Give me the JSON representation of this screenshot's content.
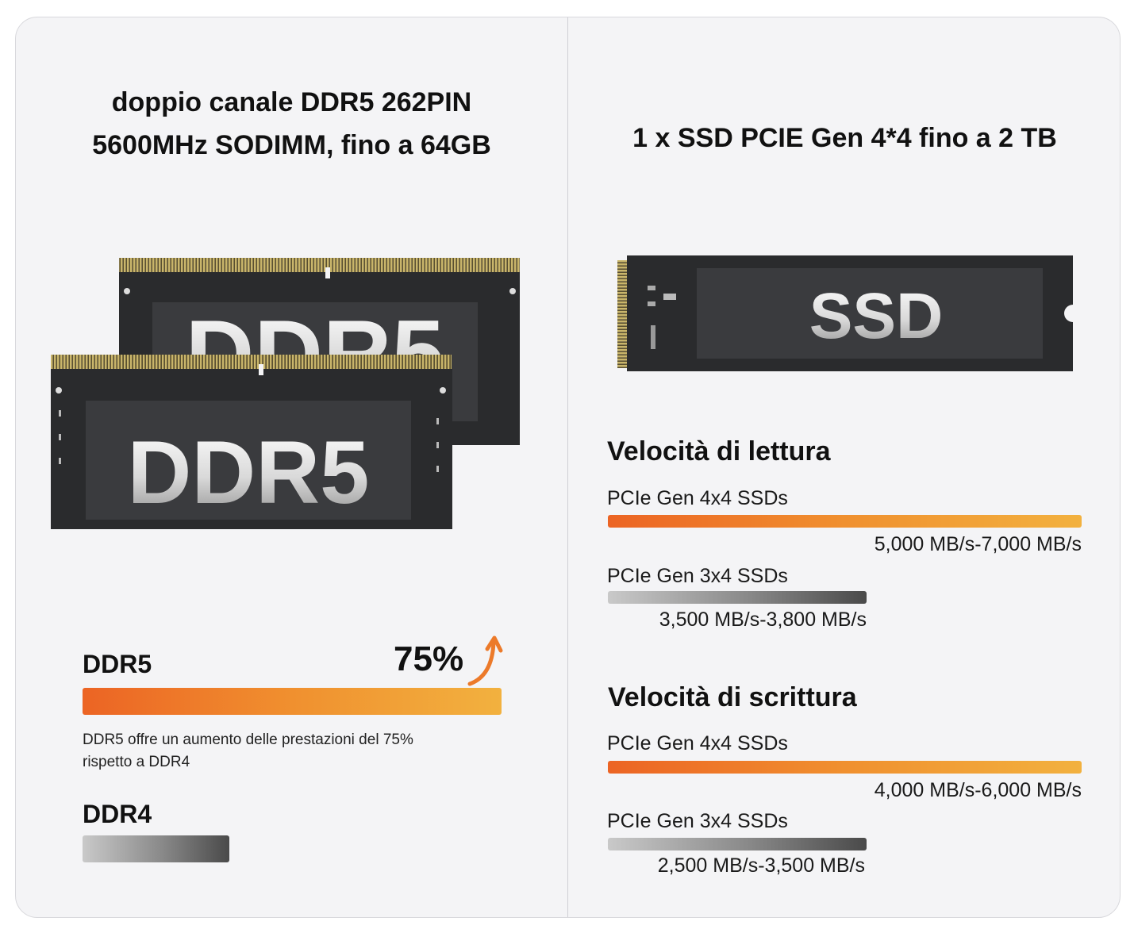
{
  "left": {
    "title_line1": "doppio canale DDR5 262PIN",
    "title_line2": "5600MHz SODIMM, fino a 64GB",
    "module_label_back": "DDR5",
    "module_label_front": "DDR5",
    "ddr5_label": "DDR5",
    "ddr5_percent": "75%",
    "ddr5_bar_fraction": 1.0,
    "desc_line1": "DDR5 offre un aumento delle prestazioni del 75%",
    "desc_line2": "rispetto a DDR4",
    "ddr4_label": "DDR4",
    "ddr4_bar_fraction": 0.35
  },
  "right": {
    "title": "1 x SSD PCIE Gen 4*4 fino a 2 TB",
    "ssd_label": "SSD",
    "read": {
      "heading": "Velocità di lettura",
      "gen4_label": "PCIe Gen 4x4 SSDs",
      "gen4_value": "5,000 MB/s-7,000 MB/s",
      "gen3_label": "PCIe Gen 3x4 SSDs",
      "gen3_value": "3,500 MB/s-3,800 MB/s"
    },
    "write": {
      "heading": "Velocità di scrittura",
      "gen4_label": "PCIe Gen 4x4 SSDs",
      "gen4_value": "4,000 MB/s-6,000 MB/s",
      "gen3_label": "PCIe Gen 3x4 SSDs",
      "gen3_value": "2,500 MB/s-3,500 MB/s"
    }
  },
  "colors": {
    "orange_start": "#ec6424",
    "orange_end": "#f2b13f",
    "pcb": "#2a2b2d",
    "gold": "#c9b56a"
  }
}
